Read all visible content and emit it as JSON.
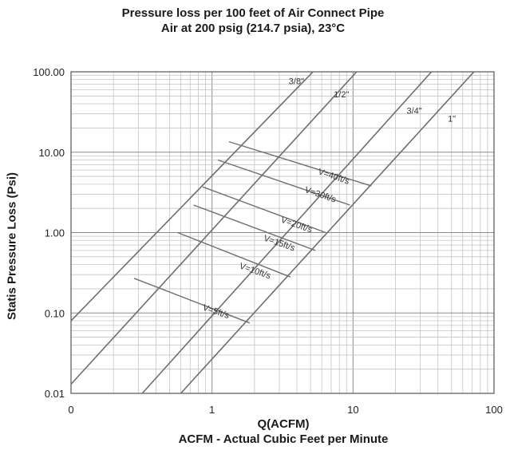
{
  "chart_data": {
    "type": "line",
    "title": "Pressure loss per 100 feet of Air Connect Pipe",
    "subtitle": "Air at 200 psig (214.7 psia), 23°C",
    "xlabel": "Q(ACFM)",
    "xlabel2": "ACFM - Actual Cubic Feet per Minute",
    "ylabel": "Statis Pressure Loss (Psi)",
    "xscale": "log",
    "yscale": "log",
    "xlim": [
      0.1,
      100
    ],
    "ylim": [
      0.01,
      100
    ],
    "grid": true,
    "xticks": [
      {
        "value": 0.1,
        "label": "0"
      },
      {
        "value": 1,
        "label": "1"
      },
      {
        "value": 10,
        "label": "10"
      },
      {
        "value": 100,
        "label": "100"
      }
    ],
    "yticks": [
      {
        "value": 0.01,
        "label": "0.01"
      },
      {
        "value": 0.1,
        "label": "0.10"
      },
      {
        "value": 1,
        "label": "1.00"
      },
      {
        "value": 10,
        "label": "10.00"
      },
      {
        "value": 100,
        "label": "100.00"
      }
    ],
    "series": [
      {
        "name": "3/8\"",
        "x": [
          0.1,
          5.2
        ],
        "y": [
          0.08,
          100
        ],
        "label_at": [
          3.5,
          70
        ]
      },
      {
        "name": "1/2\"",
        "x": [
          0.1,
          10.6
        ],
        "y": [
          0.013,
          100
        ],
        "label_at": [
          7.3,
          48
        ]
      },
      {
        "name": "3/4\"",
        "x": [
          0.32,
          36
        ],
        "y": [
          0.01,
          100
        ],
        "label_at": [
          24,
          30
        ]
      },
      {
        "name": "1\"",
        "x": [
          0.6,
          72
        ],
        "y": [
          0.01,
          100
        ],
        "label_at": [
          47,
          24
        ]
      }
    ],
    "velocity_lines": [
      {
        "name": "V=5ft/s",
        "x": [
          0.28,
          1.85
        ],
        "y": [
          0.27,
          0.075
        ],
        "label_at": [
          0.85,
          0.11
        ],
        "label_angle": 19
      },
      {
        "name": "V=10ft/s",
        "x": [
          0.57,
          3.6
        ],
        "y": [
          1.0,
          0.28
        ],
        "label_at": [
          1.55,
          0.36
        ],
        "label_angle": 19
      },
      {
        "name": "V=15ft/s",
        "x": [
          0.74,
          5.4
        ],
        "y": [
          2.2,
          0.6
        ],
        "label_at": [
          2.3,
          0.8
        ],
        "label_angle": 19
      },
      {
        "name": "V=20ft/s",
        "x": [
          0.86,
          6.4
        ],
        "y": [
          3.7,
          1.0
        ],
        "label_at": [
          3.05,
          1.35
        ],
        "label_angle": 19
      },
      {
        "name": "V=30ft/s",
        "x": [
          1.1,
          9.5
        ],
        "y": [
          8.0,
          2.2
        ],
        "label_at": [
          4.5,
          3.2
        ],
        "label_angle": 19
      },
      {
        "name": "V=40ft/s",
        "x": [
          1.32,
          13.5
        ],
        "y": [
          13.5,
          3.8
        ],
        "label_at": [
          5.6,
          5.4
        ],
        "label_angle": 19
      }
    ]
  }
}
